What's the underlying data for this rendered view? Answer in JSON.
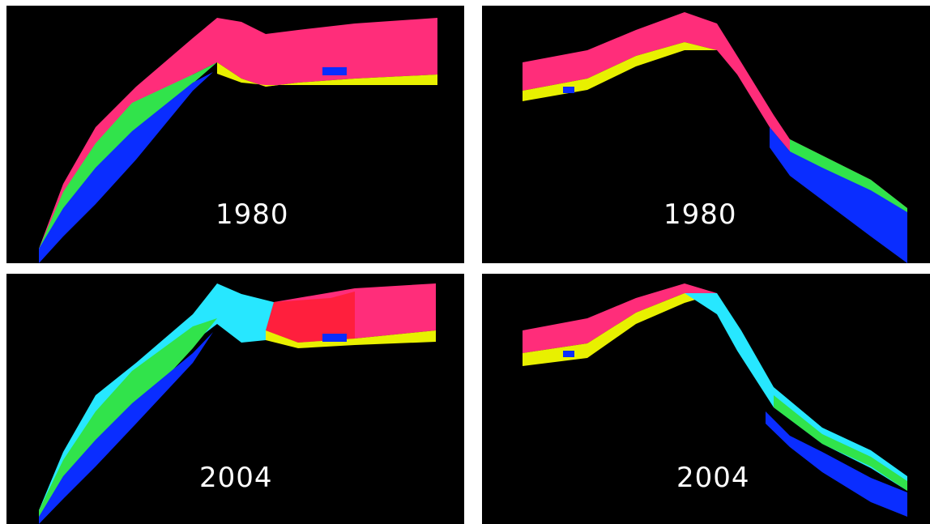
{
  "chart_data": [
    {
      "type": "area",
      "title": "1980",
      "trend": "rising-then-plateau",
      "dominant_colors": [
        "#ff2d7a",
        "#ff1f3d",
        "#e8f000",
        "#0a2dff"
      ]
    },
    {
      "type": "area",
      "title": "1980",
      "trend": "peak-then-falling",
      "dominant_colors": [
        "#ff2d7a",
        "#ff1f3d",
        "#e8f000",
        "#0a2dff"
      ]
    },
    {
      "type": "area",
      "title": "2004",
      "trend": "rising-then-plateau",
      "dominant_colors": [
        "#ff2d7a",
        "#27e7ff",
        "#0a2dff",
        "#e8f000"
      ]
    },
    {
      "type": "area",
      "title": "2004",
      "trend": "peak-then-falling",
      "dominant_colors": [
        "#ff2d7a",
        "#27e7ff",
        "#0a2dff",
        "#e8f000"
      ]
    }
  ],
  "colors": {
    "background": "#000000",
    "pink": "#ff2d7a",
    "red": "#ff1f3d",
    "yellow": "#e8f000",
    "green": "#31e34b",
    "cyan": "#27e7ff",
    "blue": "#0a2dff",
    "label": "#ffffff"
  }
}
